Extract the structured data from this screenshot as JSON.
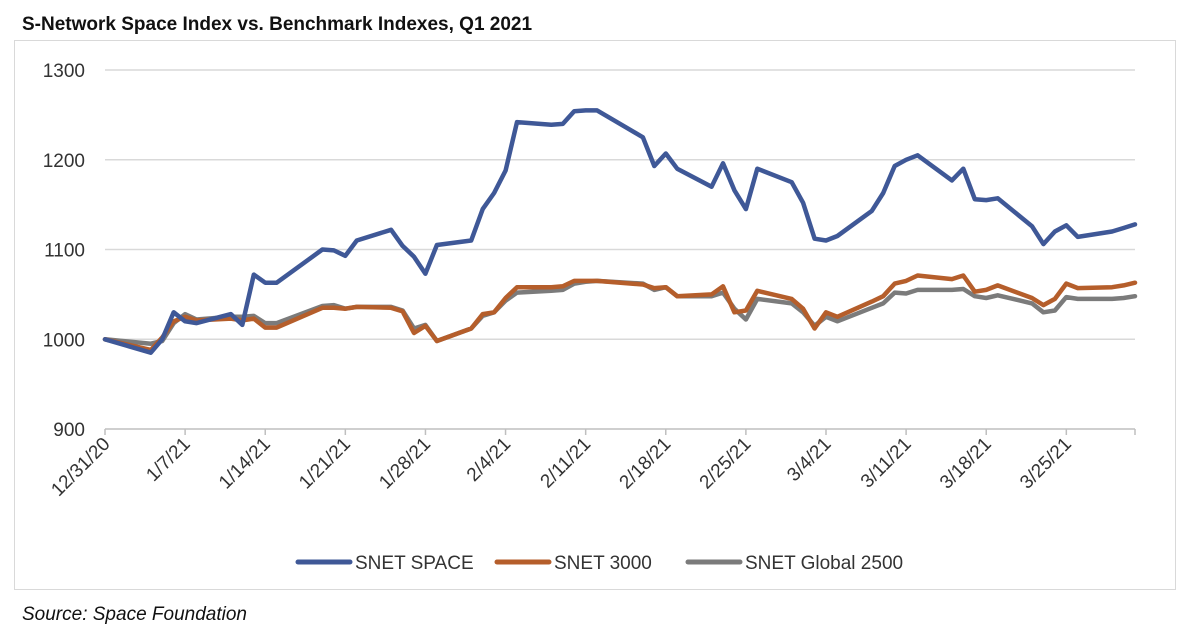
{
  "title": "S-Network Space Index vs. Benchmark Indexes, Q1 2021",
  "source": "Source: Space Foundation",
  "chart_data": {
    "type": "line",
    "title": "S-Network Space Index vs. Benchmark Indexes, Q1 2021",
    "xlabel": "",
    "ylabel": "",
    "ylim": [
      900,
      1300
    ],
    "yticks": [
      900,
      1000,
      1100,
      1200,
      1300
    ],
    "grid": true,
    "legend_position": "bottom",
    "xticks": [
      "12/31/20",
      "1/7/21",
      "1/14/21",
      "1/21/21",
      "1/28/21",
      "2/4/21",
      "2/11/21",
      "2/18/21",
      "2/25/21",
      "3/4/21",
      "3/11/21",
      "3/18/21",
      "3/25/21"
    ],
    "x": [
      "2020-12-31",
      "2021-01-04",
      "2021-01-05",
      "2021-01-06",
      "2021-01-07",
      "2021-01-08",
      "2021-01-11",
      "2021-01-12",
      "2021-01-13",
      "2021-01-14",
      "2021-01-15",
      "2021-01-19",
      "2021-01-20",
      "2021-01-21",
      "2021-01-22",
      "2021-01-25",
      "2021-01-26",
      "2021-01-27",
      "2021-01-28",
      "2021-01-29",
      "2021-02-01",
      "2021-02-02",
      "2021-02-03",
      "2021-02-04",
      "2021-02-05",
      "2021-02-08",
      "2021-02-09",
      "2021-02-10",
      "2021-02-11",
      "2021-02-12",
      "2021-02-16",
      "2021-02-17",
      "2021-02-18",
      "2021-02-19",
      "2021-02-22",
      "2021-02-23",
      "2021-02-24",
      "2021-02-25",
      "2021-02-26",
      "2021-03-01",
      "2021-03-02",
      "2021-03-03",
      "2021-03-04",
      "2021-03-05",
      "2021-03-08",
      "2021-03-09",
      "2021-03-10",
      "2021-03-11",
      "2021-03-12",
      "2021-03-15",
      "2021-03-16",
      "2021-03-17",
      "2021-03-18",
      "2021-03-19",
      "2021-03-22",
      "2021-03-23",
      "2021-03-24",
      "2021-03-25",
      "2021-03-26",
      "2021-03-29",
      "2021-03-30",
      "2021-03-31"
    ],
    "series": [
      {
        "name": "SNET SPACE",
        "color": "#3f5897",
        "values": [
          1000,
          985,
          1000,
          1030,
          1020,
          1018,
          1028,
          1016,
          1072,
          1063,
          1063,
          1100,
          1099,
          1093,
          1110,
          1122,
          1104,
          1092,
          1073,
          1105,
          1110,
          1145,
          1163,
          1188,
          1242,
          1239,
          1240,
          1254,
          1255,
          1255,
          1225,
          1193,
          1207,
          1190,
          1170,
          1196,
          1166,
          1145,
          1190,
          1175,
          1152,
          1112,
          1110,
          1115,
          1143,
          1163,
          1193,
          1200,
          1205,
          1177,
          1190,
          1156,
          1155,
          1157,
          1126,
          1106,
          1120,
          1127,
          1114,
          1120,
          1124,
          1128
        ]
      },
      {
        "name": "SNET 3000",
        "color": "#b55e2b",
        "values": [
          1000,
          988,
          1002,
          1020,
          1025,
          1021,
          1023,
          1021,
          1023,
          1013,
          1013,
          1035,
          1035,
          1034,
          1036,
          1035,
          1031,
          1007,
          1015,
          998,
          1012,
          1028,
          1030,
          1046,
          1058,
          1058,
          1059,
          1065,
          1065,
          1065,
          1061,
          1057,
          1058,
          1048,
          1050,
          1059,
          1030,
          1032,
          1054,
          1045,
          1034,
          1012,
          1030,
          1025,
          1042,
          1048,
          1062,
          1065,
          1071,
          1067,
          1071,
          1053,
          1055,
          1060,
          1046,
          1038,
          1045,
          1062,
          1057,
          1058,
          1060,
          1063
        ]
      },
      {
        "name": "SNET Global 2500",
        "color": "#7b7b7b",
        "values": [
          1000,
          995,
          998,
          1018,
          1028,
          1022,
          1025,
          1025,
          1026,
          1018,
          1018,
          1037,
          1038,
          1034,
          1036,
          1036,
          1032,
          1012,
          1016,
          998,
          1012,
          1026,
          1030,
          1043,
          1052,
          1054,
          1055,
          1062,
          1064,
          1065,
          1062,
          1055,
          1058,
          1048,
          1048,
          1052,
          1034,
          1022,
          1045,
          1040,
          1030,
          1015,
          1025,
          1020,
          1035,
          1040,
          1052,
          1051,
          1055,
          1055,
          1056,
          1048,
          1046,
          1049,
          1040,
          1030,
          1032,
          1047,
          1045,
          1045,
          1046,
          1048
        ]
      }
    ]
  }
}
